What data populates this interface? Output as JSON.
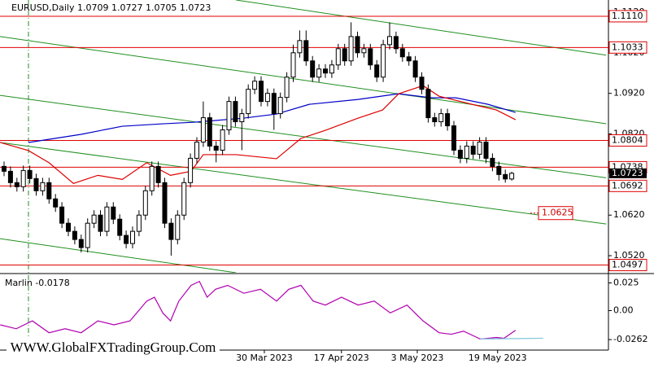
{
  "chart_data": {
    "type": "candlestick",
    "title": "EURUSD,Daily  1.0709 1.0727 1.0705 1.0723",
    "xlim": [
      -0.633,
      94.05
    ],
    "ylim": [
      1.0478,
      1.115
    ],
    "yticks": [
      {
        "value": 1.112,
        "label": "1.1120"
      },
      {
        "value": 1.102,
        "label": "1.1020"
      },
      {
        "value": 1.092,
        "label": "1.0920"
      },
      {
        "value": 1.082,
        "label": "1.0820"
      },
      {
        "value": 1.062,
        "label": "1.0620"
      },
      {
        "value": 1.052,
        "label": "1.0520"
      }
    ],
    "xticks": [
      {
        "value": 40.5,
        "label": "30 Mar 2023"
      },
      {
        "value": 52.5,
        "label": "17 Apr 2023"
      },
      {
        "value": 64.3,
        "label": "3 May 2023"
      },
      {
        "value": 76.8,
        "label": "19 May 2023"
      }
    ],
    "candles": [
      [
        1.074,
        1.0752,
        1.0716,
        1.0728
      ],
      [
        1.0728,
        1.074,
        1.0688,
        1.07
      ],
      [
        1.07,
        1.0712,
        1.0678,
        1.069
      ],
      [
        1.069,
        1.0742,
        1.0678,
        1.073
      ],
      [
        1.073,
        1.0742,
        1.0698,
        1.071
      ],
      [
        1.071,
        1.0722,
        1.0668,
        1.068
      ],
      [
        1.068,
        1.0712,
        1.0668,
        1.07
      ],
      [
        1.07,
        1.0712,
        1.0648,
        1.066
      ],
      [
        1.066,
        1.0672,
        1.0628,
        1.064
      ],
      [
        1.064,
        1.0652,
        1.0588,
        1.06
      ],
      [
        1.06,
        1.0612,
        1.0568,
        1.058
      ],
      [
        1.058,
        1.0592,
        1.0548,
        1.056
      ],
      [
        1.056,
        1.0572,
        1.0528,
        1.054
      ],
      [
        1.054,
        1.0612,
        1.0528,
        1.06
      ],
      [
        1.06,
        1.0632,
        1.0588,
        1.062
      ],
      [
        1.062,
        1.0632,
        1.0568,
        1.058
      ],
      [
        1.058,
        1.0652,
        1.0568,
        1.064
      ],
      [
        1.064,
        1.0652,
        1.0598,
        1.061
      ],
      [
        1.061,
        1.0622,
        1.0558,
        1.057
      ],
      [
        1.057,
        1.0582,
        1.0538,
        1.055
      ],
      [
        1.055,
        1.0592,
        1.0538,
        1.058
      ],
      [
        1.058,
        1.0632,
        1.0568,
        1.062
      ],
      [
        1.062,
        1.0692,
        1.0608,
        1.068
      ],
      [
        1.068,
        1.0752,
        1.0668,
        1.074
      ],
      [
        1.074,
        1.0752,
        1.0688,
        1.07
      ],
      [
        1.07,
        1.0712,
        1.0588,
        1.06
      ],
      [
        1.06,
        1.0612,
        1.052,
        1.056
      ],
      [
        1.056,
        1.0632,
        1.0548,
        1.062
      ],
      [
        1.062,
        1.0712,
        1.0608,
        1.07
      ],
      [
        1.07,
        1.0772,
        1.0688,
        1.076
      ],
      [
        1.076,
        1.0812,
        1.0748,
        1.08
      ],
      [
        1.08,
        1.09,
        1.0788,
        1.086
      ],
      [
        1.086,
        1.0872,
        1.0778,
        1.079
      ],
      [
        1.079,
        1.0802,
        1.075,
        1.078
      ],
      [
        1.078,
        1.0842,
        1.0768,
        1.083
      ],
      [
        1.083,
        1.0912,
        1.0818,
        1.09
      ],
      [
        1.09,
        1.0912,
        1.0838,
        1.085
      ],
      [
        1.085,
        1.0882,
        1.078,
        1.087
      ],
      [
        1.087,
        1.0942,
        1.0858,
        1.093
      ],
      [
        1.093,
        1.0962,
        1.0918,
        1.095
      ],
      [
        1.095,
        1.0962,
        1.0888,
        1.09
      ],
      [
        1.09,
        1.0932,
        1.0888,
        1.092
      ],
      [
        1.092,
        1.0932,
        1.083,
        1.087
      ],
      [
        1.087,
        1.0922,
        1.0858,
        1.091
      ],
      [
        1.091,
        1.0972,
        1.0898,
        1.096
      ],
      [
        1.096,
        1.104,
        1.0948,
        1.102
      ],
      [
        1.102,
        1.1075,
        1.1008,
        1.105
      ],
      [
        1.105,
        1.1075,
        1.0988,
        1.1
      ],
      [
        1.1,
        1.1012,
        1.0948,
        1.096
      ],
      [
        1.096,
        1.0992,
        1.0948,
        1.098
      ],
      [
        1.098,
        1.0992,
        1.0958,
        1.097
      ],
      [
        1.097,
        1.1002,
        1.0958,
        1.099
      ],
      [
        1.099,
        1.1042,
        1.0978,
        1.103
      ],
      [
        1.103,
        1.1042,
        1.0988,
        1.1
      ],
      [
        1.1,
        1.1095,
        1.0988,
        1.106
      ],
      [
        1.106,
        1.1072,
        1.1008,
        1.102
      ],
      [
        1.102,
        1.1042,
        1.1008,
        1.103
      ],
      [
        1.103,
        1.1042,
        1.0978,
        1.099
      ],
      [
        1.099,
        1.1002,
        1.0948,
        1.096
      ],
      [
        1.096,
        1.1052,
        1.0948,
        1.104
      ],
      [
        1.104,
        1.1095,
        1.1028,
        1.106
      ],
      [
        1.106,
        1.1072,
        1.1018,
        1.103
      ],
      [
        1.103,
        1.1042,
        1.0998,
        1.101
      ],
      [
        1.101,
        1.1022,
        1.0988,
        1.1
      ],
      [
        1.1,
        1.1012,
        1.0948,
        1.096
      ],
      [
        1.096,
        1.0972,
        1.0918,
        1.093
      ],
      [
        1.093,
        1.0942,
        1.0848,
        1.086
      ],
      [
        1.086,
        1.0872,
        1.0838,
        1.085
      ],
      [
        1.085,
        1.0882,
        1.0838,
        1.087
      ],
      [
        1.087,
        1.0882,
        1.0828,
        1.084
      ],
      [
        1.084,
        1.0852,
        1.0768,
        1.078
      ],
      [
        1.078,
        1.0792,
        1.0748,
        1.076
      ],
      [
        1.076,
        1.0802,
        1.0748,
        1.079
      ],
      [
        1.079,
        1.0802,
        1.0758,
        1.077
      ],
      [
        1.077,
        1.0812,
        1.0758,
        1.08
      ],
      [
        1.08,
        1.0812,
        1.0748,
        1.076
      ],
      [
        1.076,
        1.0772,
        1.0728,
        1.074
      ],
      [
        1.074,
        1.0752,
        1.0705,
        1.072
      ],
      [
        1.072,
        1.0732,
        1.07,
        1.0709
      ],
      [
        1.0709,
        1.0727,
        1.0705,
        1.0723
      ]
    ],
    "series": [
      {
        "color": "#0000c8",
        "x": [
          3.8,
          12.0,
          18.4,
          24.7,
          29.7,
          37.3,
          42.4,
          47.5,
          55.1,
          61.4,
          66.5,
          70.3,
          75.3,
          79.6
        ],
        "values": [
          1.0799,
          1.0819,
          1.0839,
          1.0845,
          1.0849,
          1.0859,
          1.0869,
          1.0893,
          1.0905,
          1.0919,
          1.0909,
          1.0909,
          1.0893,
          1.0873
        ]
      },
      {
        "color": "#dd0000",
        "x": [
          -0.6,
          3.8,
          7.0,
          10.8,
          14.6,
          18.4,
          22.2,
          25.9,
          29.1,
          31.0,
          36.1,
          42.4,
          46.2,
          50.0,
          55.1,
          58.9,
          61.4,
          65.2,
          67.7,
          72.8,
          76.6,
          79.6
        ],
        "values": [
          1.0799,
          1.0779,
          1.0749,
          1.0698,
          1.0718,
          1.0708,
          1.0749,
          1.0718,
          1.0728,
          1.0769,
          1.0769,
          1.0759,
          1.0809,
          1.0829,
          1.0859,
          1.0879,
          1.0919,
          1.0939,
          1.0913,
          1.0893,
          1.0879,
          1.0855
        ]
      }
    ],
    "levels": [
      {
        "value": 1.111,
        "label": "1.1110"
      },
      {
        "value": 1.1033,
        "label": "1.1033"
      },
      {
        "value": 1.0804,
        "label": "1.0804"
      },
      {
        "value": 1.0738,
        "label": "1.0738"
      },
      {
        "value": 1.0692,
        "label": "1.0692"
      },
      {
        "value": 1.0497,
        "label": "1.0497"
      }
    ],
    "level_color": "#e00000",
    "trendlines": [
      {
        "x": [
          36.1,
          93.7
        ],
        "y": [
          1.115,
          1.1014
        ]
      },
      {
        "x": [
          -0.63,
          93.7
        ],
        "y": [
          1.106,
          1.0845
        ]
      },
      {
        "x": [
          -0.63,
          93.7
        ],
        "y": [
          1.0915,
          1.0712
        ]
      },
      {
        "x": [
          -0.63,
          93.7
        ],
        "y": [
          1.0799,
          1.0598
        ]
      },
      {
        "x": [
          -0.63,
          36.1
        ],
        "y": [
          1.0562,
          1.0478
        ]
      }
    ],
    "trendline_color": "#1f8f1f",
    "annotation": {
      "value": 1.0625,
      "label": "1.0625"
    },
    "indicator": {
      "title": "Marlin -0.0178",
      "color": "#b000b0",
      "ylim": [
        -0.0357,
        0.032
      ],
      "yticks": [
        0.025,
        {
          "value": 0,
          "label": "0.00"
        },
        -0.0262
      ],
      "x": [
        -0.6,
        1.9,
        4.4,
        7.0,
        9.5,
        12.0,
        14.6,
        17.1,
        19.6,
        22.2,
        23.4,
        24.7,
        25.9,
        27.2,
        29.1,
        30.4,
        31.6,
        32.9,
        34.8,
        37.3,
        39.9,
        42.4,
        44.3,
        46.2,
        48.1,
        50.0,
        52.5,
        55.1,
        57.6,
        60.1,
        62.7,
        65.2,
        67.7,
        69.6,
        71.5,
        74.1,
        76.6,
        77.8,
        79.6
      ],
      "values": [
        -0.0129,
        -0.0164,
        -0.0093,
        -0.02,
        -0.0164,
        -0.02,
        -0.0093,
        -0.0129,
        -0.0093,
        0.0086,
        0.0121,
        -0.0021,
        -0.0093,
        0.0086,
        0.0228,
        0.0264,
        0.0121,
        0.0193,
        0.0228,
        0.0157,
        0.0193,
        0.0086,
        0.0193,
        0.0228,
        0.0086,
        0.005,
        0.0121,
        0.005,
        0.0086,
        -0.0021,
        0.005,
        -0.0093,
        -0.02,
        -0.0214,
        -0.0186,
        -0.0257,
        -0.0243,
        -0.025,
        -0.0178
      ],
      "signal": {
        "color": "#7fc7d9",
        "x": [
          74.1,
          83.9
        ],
        "values": [
          -0.0257,
          -0.025
        ]
      }
    },
    "watermark": "WWW.GlobalFXTradingGroup.Com"
  }
}
